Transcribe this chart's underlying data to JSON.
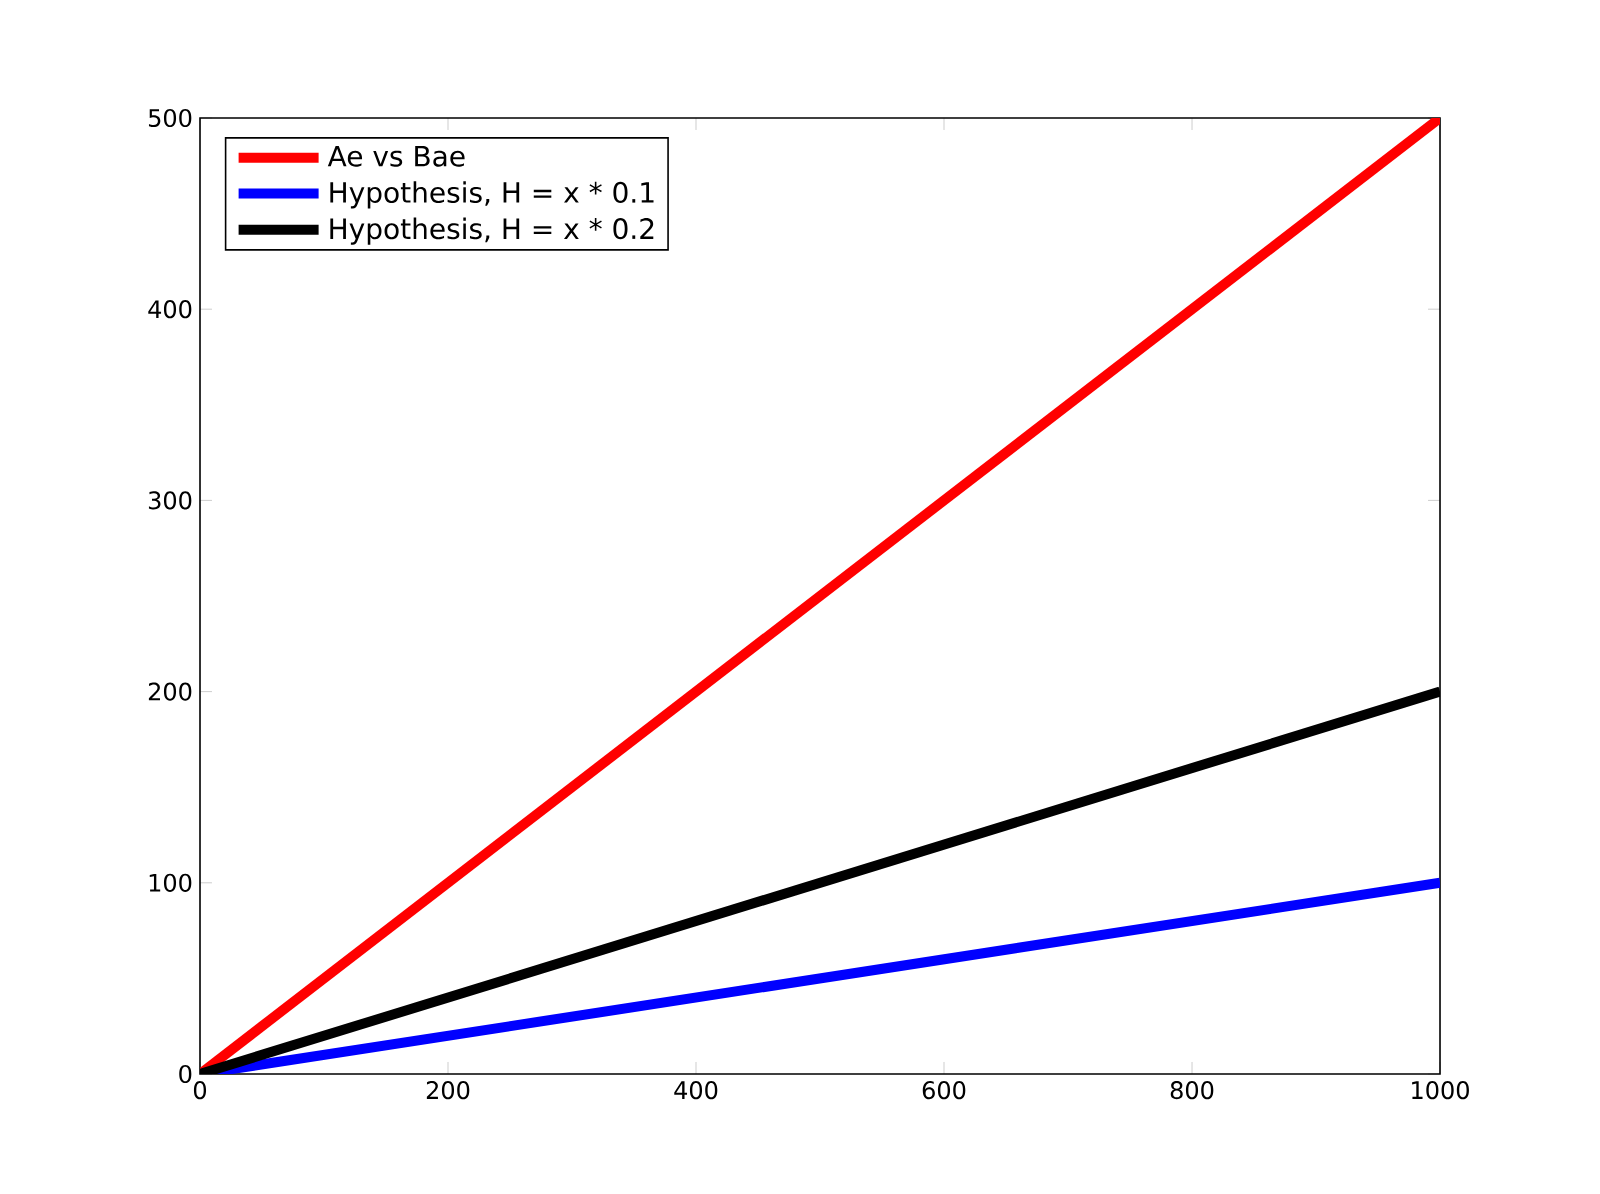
{
  "chart_data": {
    "type": "line",
    "x": [
      0,
      1000
    ],
    "series": [
      {
        "name": "Ae vs Bae",
        "color": "#ff0000",
        "values": [
          0,
          500
        ]
      },
      {
        "name": "Hypothesis, H = x * 0.1",
        "color": "#0000ff",
        "values": [
          0,
          100
        ]
      },
      {
        "name": "Hypothesis, H = x * 0.2",
        "color": "#000000",
        "values": [
          0,
          200
        ]
      }
    ],
    "xlim": [
      0,
      1000
    ],
    "ylim": [
      0,
      500
    ],
    "xticks": [
      0,
      200,
      400,
      600,
      800,
      1000
    ],
    "yticks": [
      0,
      100,
      200,
      300,
      400,
      500
    ],
    "legend": "top left"
  }
}
